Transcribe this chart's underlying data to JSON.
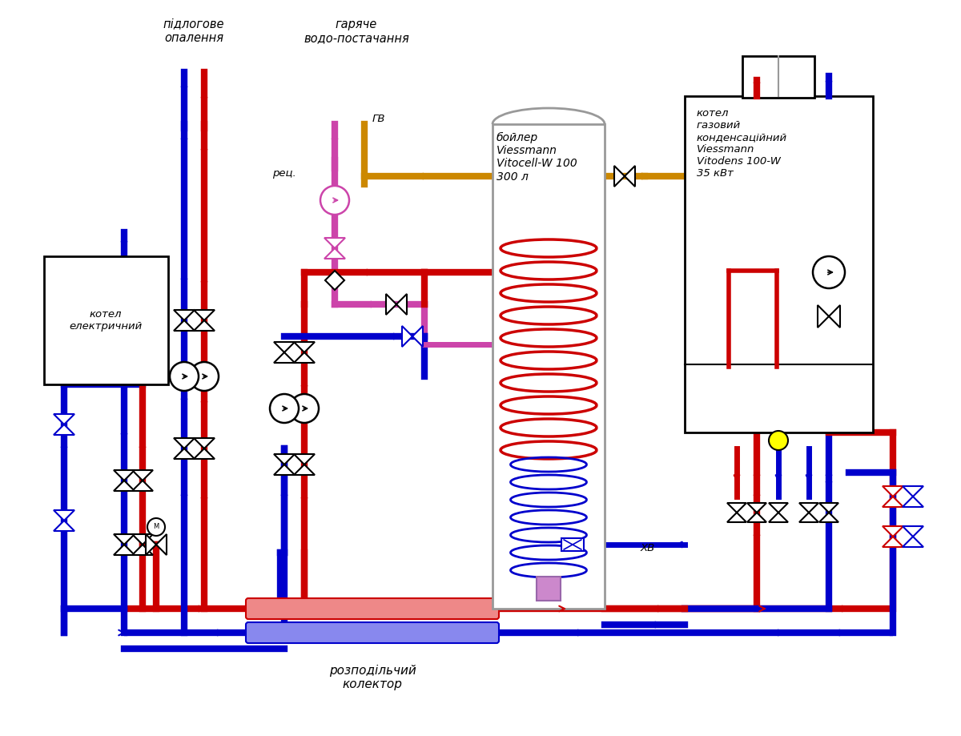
{
  "bg_color": "#ffffff",
  "red": "#cc0000",
  "blue": "#0000cc",
  "pink": "#cc44aa",
  "orange": "#cc8800",
  "black": "#000000",
  "gray": "#999999",
  "yellow": "#ffff00",
  "label_podlogovoe": "підлогове\nопалення",
  "label_garyache": "гаряче\nводо-постачання",
  "label_boyler": "бойлер\nViessmann\nVitocell-W 100\n300 л",
  "label_kotel_gaz": "котел\nгазовий\nконденсаційний\nViessmann\nVitodens 100-W\n35 кВт",
  "label_kotel_el": "котел\nелектричний",
  "label_kollektor": "розподільчий\nколектор",
  "label_rec": "рец.",
  "label_gv": "ГВ",
  "label_xv": "ХВ"
}
